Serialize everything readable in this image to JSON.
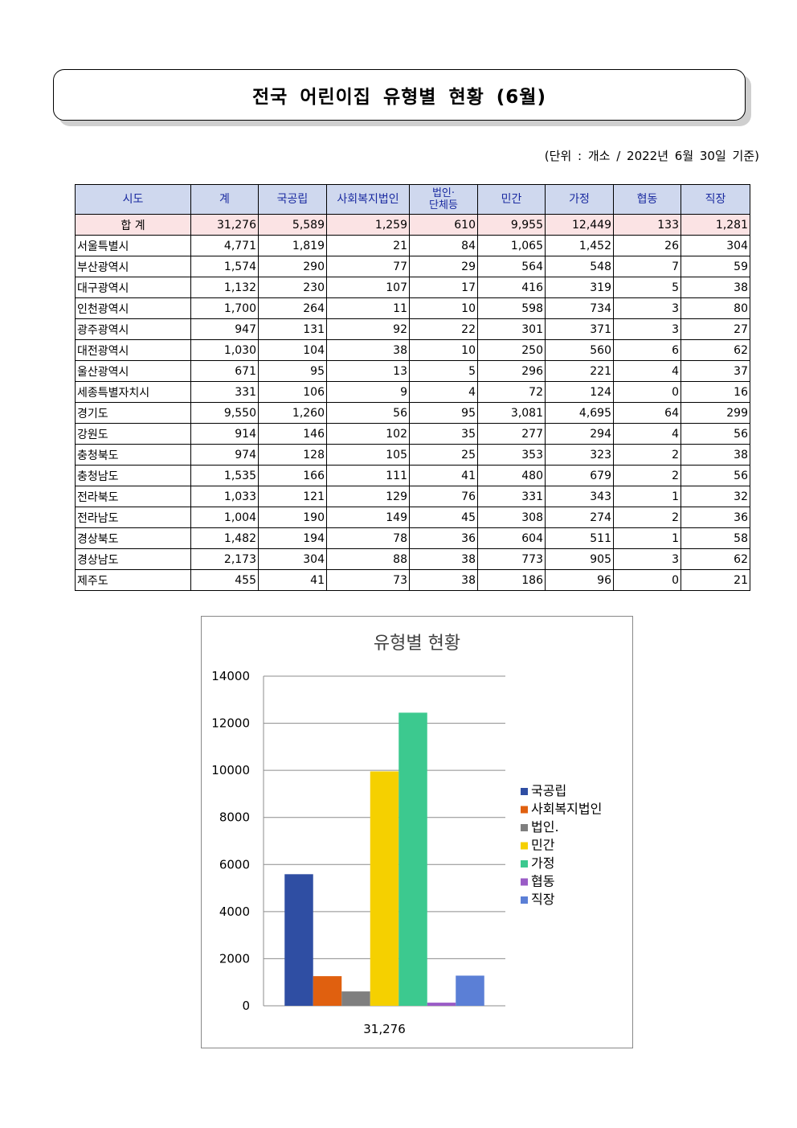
{
  "title": "전국 어린이집 유형별 현황 (6월)",
  "unit_note": "(단위 : 개소 / 2022년 6월 30일 기준)",
  "table": {
    "headers": [
      "시도",
      "계",
      "국공립",
      "사회복지법인",
      "법인·\n단체등",
      "민간",
      "가정",
      "협동",
      "직장"
    ],
    "total_row": [
      "합 계",
      "31,276",
      "5,589",
      "1,259",
      "610",
      "9,955",
      "12,449",
      "133",
      "1,281"
    ],
    "rows": [
      [
        "서울특별시",
        "4,771",
        "1,819",
        "21",
        "84",
        "1,065",
        "1,452",
        "26",
        "304"
      ],
      [
        "부산광역시",
        "1,574",
        "290",
        "77",
        "29",
        "564",
        "548",
        "7",
        "59"
      ],
      [
        "대구광역시",
        "1,132",
        "230",
        "107",
        "17",
        "416",
        "319",
        "5",
        "38"
      ],
      [
        "인천광역시",
        "1,700",
        "264",
        "11",
        "10",
        "598",
        "734",
        "3",
        "80"
      ],
      [
        "광주광역시",
        "947",
        "131",
        "92",
        "22",
        "301",
        "371",
        "3",
        "27"
      ],
      [
        "대전광역시",
        "1,030",
        "104",
        "38",
        "10",
        "250",
        "560",
        "6",
        "62"
      ],
      [
        "울산광역시",
        "671",
        "95",
        "13",
        "5",
        "296",
        "221",
        "4",
        "37"
      ],
      [
        "세종특별자치시",
        "331",
        "106",
        "9",
        "4",
        "72",
        "124",
        "0",
        "16"
      ],
      [
        "경기도",
        "9,550",
        "1,260",
        "56",
        "95",
        "3,081",
        "4,695",
        "64",
        "299"
      ],
      [
        "강원도",
        "914",
        "146",
        "102",
        "35",
        "277",
        "294",
        "4",
        "56"
      ],
      [
        "충청북도",
        "974",
        "128",
        "105",
        "25",
        "353",
        "323",
        "2",
        "38"
      ],
      [
        "충청남도",
        "1,535",
        "166",
        "111",
        "41",
        "480",
        "679",
        "2",
        "56"
      ],
      [
        "전라북도",
        "1,033",
        "121",
        "129",
        "76",
        "331",
        "343",
        "1",
        "32"
      ],
      [
        "전라남도",
        "1,004",
        "190",
        "149",
        "45",
        "308",
        "274",
        "2",
        "36"
      ],
      [
        "경상북도",
        "1,482",
        "194",
        "78",
        "36",
        "604",
        "511",
        "1",
        "58"
      ],
      [
        "경상남도",
        "2,173",
        "304",
        "88",
        "38",
        "773",
        "905",
        "3",
        "62"
      ],
      [
        "제주도",
        "455",
        "41",
        "73",
        "38",
        "186",
        "96",
        "0",
        "21"
      ]
    ]
  },
  "chart_data": {
    "type": "bar",
    "title": "유형별 현황",
    "categories": [
      "31,276"
    ],
    "series": [
      {
        "name": "국공립",
        "values": [
          5589
        ],
        "color": "#2f4ea3"
      },
      {
        "name": "사회복지법인",
        "values": [
          1259
        ],
        "color": "#e0600f"
      },
      {
        "name": "법인.",
        "values": [
          610
        ],
        "color": "#7f7f7f"
      },
      {
        "name": "민간",
        "values": [
          9955
        ],
        "color": "#f5d000"
      },
      {
        "name": "가정",
        "values": [
          12449
        ],
        "color": "#3cc98f"
      },
      {
        "name": "협동",
        "values": [
          133
        ],
        "color": "#9a5cc6"
      },
      {
        "name": "직장",
        "values": [
          1281
        ],
        "color": "#5b7fd6"
      }
    ],
    "ylim": [
      0,
      14000
    ],
    "yticks": [
      0,
      2000,
      4000,
      6000,
      8000,
      10000,
      12000,
      14000
    ],
    "grid": true,
    "legend": "right"
  }
}
